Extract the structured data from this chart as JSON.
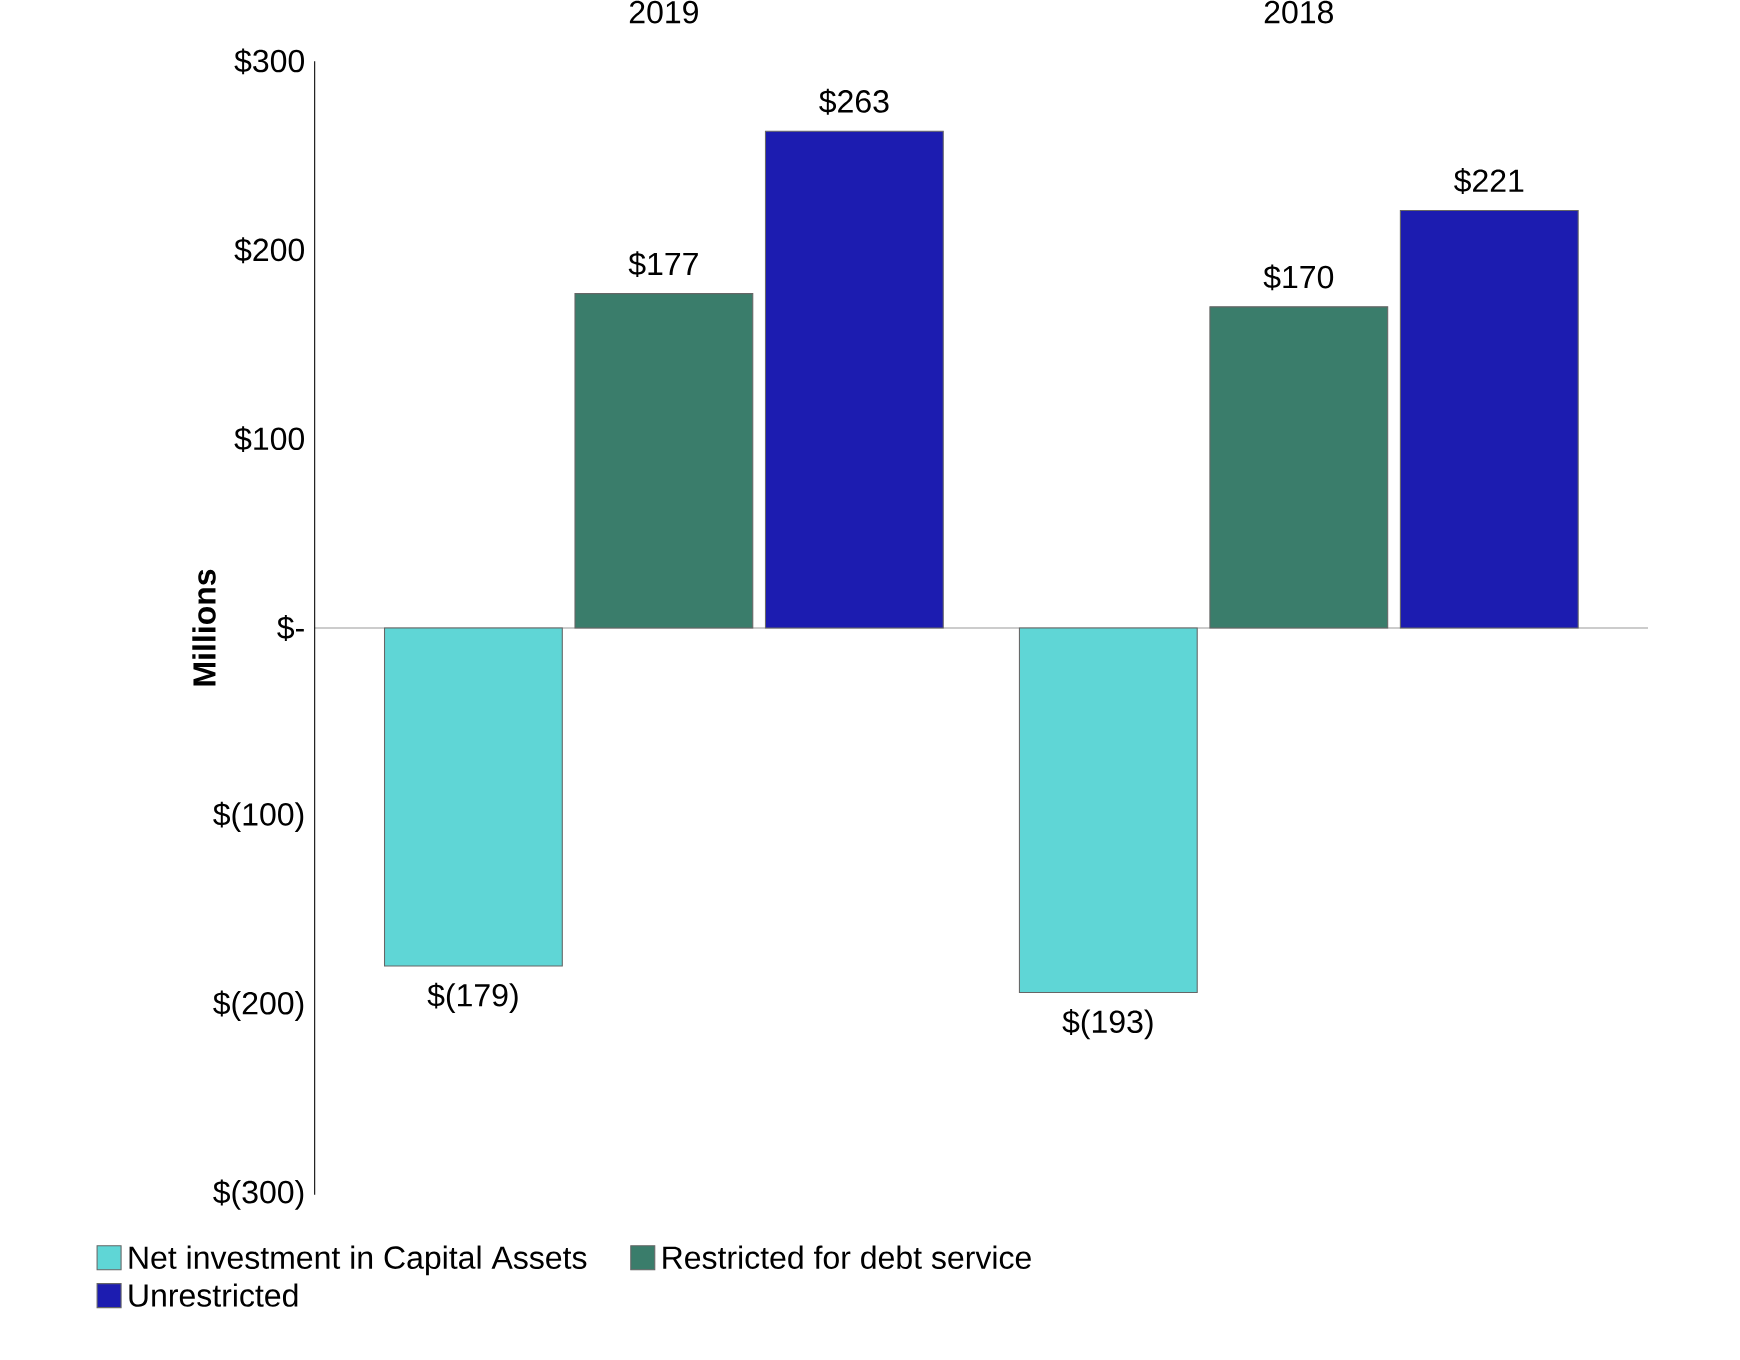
{
  "chart_data": {
    "type": "bar",
    "ylabel": "Millions",
    "categories": [
      "2019",
      "2018"
    ],
    "series": [
      {
        "name": "Net investment in Capital Assets",
        "color": "#5fd6d6",
        "values": [
          -179,
          -193
        ],
        "value_labels": [
          "$(179)",
          "$(193)"
        ]
      },
      {
        "name": "Restricted for debt service",
        "color": "#3a7d6b",
        "values": [
          177,
          170
        ],
        "value_labels": [
          "$177",
          "$170"
        ]
      },
      {
        "name": "Unrestricted",
        "color": "#1c1cb0",
        "values": [
          263,
          221
        ],
        "value_labels": [
          "$263",
          "$221"
        ]
      }
    ],
    "ylim": [
      -300,
      300
    ],
    "yticks": [
      {
        "value": -300,
        "label": "$(300)"
      },
      {
        "value": -200,
        "label": "$(200)"
      },
      {
        "value": -100,
        "label": "$(100)"
      },
      {
        "value": 0,
        "label": "$-"
      },
      {
        "value": 100,
        "label": "$100"
      },
      {
        "value": 200,
        "label": "$200"
      },
      {
        "value": 300,
        "label": "$300"
      }
    ],
    "legend": "bottom"
  }
}
